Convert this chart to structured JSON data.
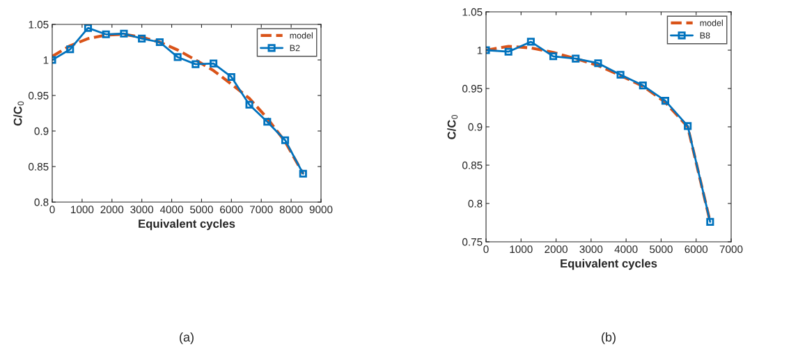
{
  "chart_data": [
    {
      "type": "line",
      "xlabel": "Equivalent cycles",
      "ylabel": "C/C$_{0}$",
      "xlim": [
        0,
        9000
      ],
      "xticks": [
        0,
        1000,
        2000,
        3000,
        4000,
        5000,
        6000,
        7000,
        8000,
        9000
      ],
      "ylim": [
        0.8,
        1.05
      ],
      "yticks": [
        0.8,
        0.85,
        0.9,
        0.95,
        {
          "value": 1,
          "label": "1"
        },
        1.05
      ],
      "grid": false,
      "legend": "top right",
      "annotations": [
        "(a)"
      ],
      "series": [
        {
          "name": "model",
          "color": "#d95319",
          "line_style": "dashed",
          "marker": "none",
          "x": [
            0,
            600,
            1200,
            1800,
            2400,
            3000,
            3600,
            4200,
            4800,
            5400,
            6000,
            6600,
            7200,
            7800,
            8400
          ],
          "values": [
            1.005,
            1.02,
            1.03,
            1.035,
            1.036,
            1.032,
            1.025,
            1.014,
            1.0,
            0.985,
            0.966,
            0.946,
            0.918,
            0.885,
            0.84
          ]
        },
        {
          "name": "B2",
          "color": "#0072bd",
          "line_style": "solid",
          "marker": "square",
          "x": [
            0,
            600,
            1200,
            1800,
            2400,
            3000,
            3600,
            4200,
            4800,
            5400,
            6000,
            6600,
            7200,
            7800,
            8400
          ],
          "values": [
            1.0,
            1.015,
            1.045,
            1.036,
            1.037,
            1.03,
            1.025,
            1.004,
            0.994,
            0.995,
            0.976,
            0.937,
            0.913,
            0.887,
            0.84
          ]
        }
      ]
    },
    {
      "type": "line",
      "xlabel": "Equivalent cycles",
      "ylabel": "C/C$_{0}$",
      "xlim": [
        0,
        7000
      ],
      "xticks": [
        0,
        1000,
        2000,
        3000,
        4000,
        5000,
        6000,
        7000
      ],
      "ylim": [
        0.75,
        1.05
      ],
      "yticks": [
        0.75,
        0.8,
        0.85,
        0.9,
        0.95,
        {
          "value": 1,
          "label": "1"
        },
        1.05
      ],
      "grid": false,
      "legend": "top right",
      "annotations": [
        "(b)"
      ],
      "series": [
        {
          "name": "model",
          "color": "#d95319",
          "line_style": "dashed",
          "marker": "none",
          "x": [
            0,
            640,
            1280,
            1920,
            2560,
            3200,
            3840,
            4480,
            5120,
            5760,
            6400
          ],
          "values": [
            1.0,
            1.005,
            1.003,
            0.997,
            0.989,
            0.98,
            0.967,
            0.953,
            0.932,
            0.9,
            0.776
          ]
        },
        {
          "name": "B8",
          "color": "#0072bd",
          "line_style": "solid",
          "marker": "square",
          "x": [
            0,
            640,
            1280,
            1920,
            2560,
            3200,
            3840,
            4480,
            5120,
            5760,
            6400
          ],
          "values": [
            1.0,
            0.998,
            1.011,
            0.992,
            0.989,
            0.983,
            0.968,
            0.954,
            0.934,
            0.901,
            0.776
          ]
        }
      ]
    }
  ]
}
